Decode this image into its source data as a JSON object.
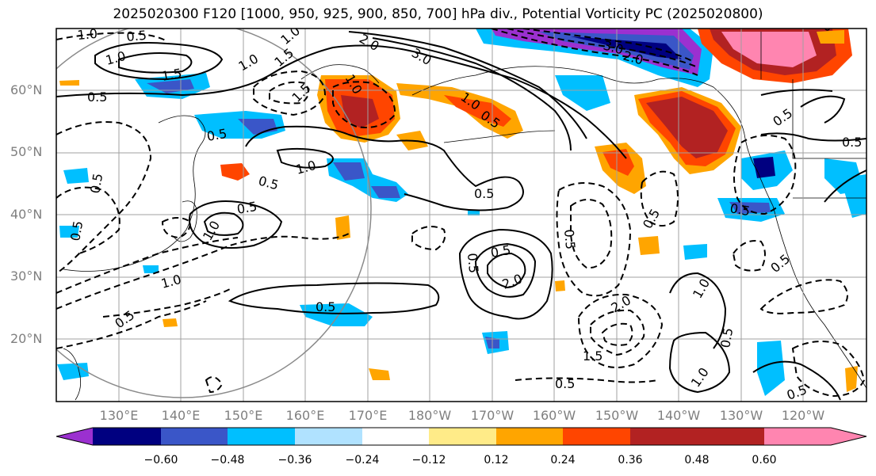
{
  "title": "2025020300 F120 [1000, 950, 925, 900, 850, 700] hPa div., Potential Vorticity PC (2025020800)",
  "lat_labels": [
    "60°N",
    "50°N",
    "40°N",
    "30°N",
    "20°N"
  ],
  "lon_labels": [
    "130°E",
    "140°E",
    "150°E",
    "160°E",
    "170°E",
    "180°W",
    "170°W",
    "160°W",
    "150°W",
    "140°W",
    "130°W",
    "120°W"
  ],
  "colorbar": {
    "ticks": [
      "−0.60",
      "−0.48",
      "−0.36",
      "−0.24",
      "−0.12",
      "0.12",
      "0.24",
      "0.36",
      "0.48",
      "0.60"
    ],
    "colors": [
      "#9b30d0",
      "#000080",
      "#3a56c8",
      "#00bfff",
      "#b0e2ff",
      "#ffffff",
      "#ffeb88",
      "#ffa500",
      "#ff4500",
      "#b22222",
      "#ff85b0"
    ]
  },
  "contour_labels": [
    "1.0",
    "0.5",
    "1.0",
    "1.5",
    "0.5",
    "0.5",
    "1.5",
    "1.0",
    "2.0",
    "3.0",
    "3.0",
    "2.0",
    "1.0",
    "0.5",
    "1.0",
    "0.5",
    "0.5",
    "1.0",
    "0.5",
    "0.5",
    "2.0",
    "0.5",
    "0.5",
    "1.0",
    "0.5",
    "0.5",
    "1.0",
    "0.5",
    "0.5",
    "0.5",
    "0.5",
    "1.5",
    "2.0",
    "1.0",
    "1.0",
    "1.5",
    "0.5",
    "0.5",
    "0.5",
    "0.5",
    "1.0",
    "0.5",
    "0.5",
    "0.5"
  ]
}
